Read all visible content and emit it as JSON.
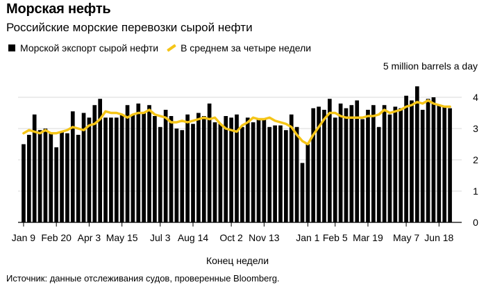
{
  "title": "Морская нефть",
  "subtitle": "Российские морские перевозки сырой нефти",
  "legend": {
    "bar_label": "Морской экспорт сырой нефти",
    "line_label": "В среднем за четыре недели"
  },
  "units": "5 million barrels a day",
  "source": "Источник: данные отслеживания судов, проверенные Bloomberg.",
  "colors": {
    "bars": "#000000",
    "line": "#f5c518",
    "grid": "#d9d9d9",
    "axis": "#000000"
  },
  "chart_data": {
    "type": "bar",
    "xlabel": "Конец недели",
    "ylabel": "5 million barrels a day",
    "ylim": [
      0,
      5
    ],
    "yticks": [
      0,
      1,
      2,
      3,
      4
    ],
    "grid": true,
    "legend_position": "top-left",
    "x_tick_labels": [
      "Jan 9",
      "Feb 20",
      "Apr 3",
      "May 15",
      "Jul 3",
      "Aug 14",
      "Oct 2",
      "Nov 13",
      "Jan 1",
      "Feb 5",
      "Mar 19",
      "May 7",
      "Jun 18"
    ],
    "x_tick_indices": [
      0,
      6,
      12,
      18,
      25,
      31,
      38,
      44,
      52,
      57,
      63,
      70,
      76
    ],
    "series": [
      {
        "name": "Морской экспорт сырой нефти",
        "type": "bar",
        "values": [
          2.5,
          2.8,
          3.45,
          2.95,
          3.0,
          2.85,
          2.4,
          2.9,
          2.85,
          3.55,
          2.8,
          3.5,
          3.35,
          3.75,
          3.95,
          3.35,
          3.35,
          3.35,
          3.45,
          3.75,
          3.45,
          3.8,
          3.5,
          3.75,
          3.4,
          3.05,
          3.6,
          3.4,
          3.0,
          2.95,
          3.45,
          3.15,
          3.5,
          3.4,
          3.8,
          3.2,
          3.15,
          3.4,
          3.35,
          3.45,
          3.05,
          3.35,
          3.2,
          3.3,
          3.3,
          3.05,
          3.1,
          3.1,
          2.95,
          3.45,
          3.05,
          1.9,
          2.5,
          3.65,
          3.7,
          3.6,
          3.95,
          3.35,
          3.8,
          3.65,
          3.75,
          3.9,
          3.3,
          3.6,
          3.75,
          3.05,
          3.75,
          3.45,
          3.7,
          3.65,
          4.05,
          3.9,
          4.35,
          3.6,
          3.95,
          4.0,
          3.75,
          3.7,
          3.65
        ]
      },
      {
        "name": "В среднем за четыре недели",
        "type": "line",
        "values": [
          2.85,
          2.95,
          2.9,
          2.85,
          2.95,
          2.85,
          2.85,
          2.9,
          2.95,
          3.05,
          3.0,
          2.95,
          3.1,
          3.15,
          3.3,
          3.55,
          3.5,
          3.5,
          3.45,
          3.35,
          3.45,
          3.5,
          3.5,
          3.6,
          3.45,
          3.4,
          3.35,
          3.2,
          3.2,
          3.25,
          3.2,
          3.25,
          3.3,
          3.35,
          3.3,
          3.35,
          3.15,
          3.0,
          2.95,
          2.9,
          3.1,
          3.2,
          3.35,
          3.3,
          3.3,
          3.35,
          3.25,
          3.2,
          3.15,
          3.05,
          2.8,
          2.6,
          2.5,
          2.8,
          3.05,
          3.3,
          3.5,
          3.5,
          3.4,
          3.35,
          3.35,
          3.35,
          3.35,
          3.4,
          3.4,
          3.45,
          3.6,
          3.5,
          3.55,
          3.6,
          3.7,
          3.75,
          3.85,
          3.8,
          3.9,
          3.8,
          3.75,
          3.7,
          3.7
        ]
      }
    ]
  }
}
